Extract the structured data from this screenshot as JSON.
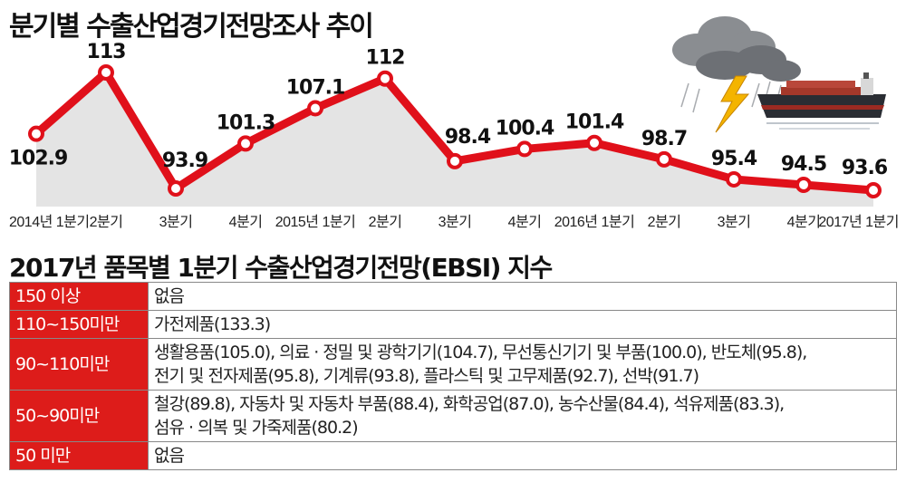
{
  "title": "분기별 수출산업경기전망조사 추이",
  "subtitle": "2017년 품목별 1분기 수출산업경기전망(EBSI) 지수",
  "colors": {
    "line": "#e0101a",
    "area": "#e4e4e4",
    "range_bg": "#dd1c1a"
  },
  "chart_data": {
    "type": "line",
    "title": "분기별 수출산업경기전망조사 추이",
    "categories": [
      "2014년 1분기",
      "2분기",
      "3분기",
      "4분기",
      "2015년 1분기",
      "2분기",
      "3분기",
      "4분기",
      "2016년 1분기",
      "2분기",
      "3분기",
      "4분기",
      "2017년 1분기"
    ],
    "values": [
      102.9,
      113,
      93.9,
      101.3,
      107.1,
      112,
      98.4,
      100.4,
      101.4,
      98.7,
      95.4,
      94.5,
      93.6
    ],
    "labels": [
      "102.9",
      "113",
      "93.9",
      "101.3",
      "107.1",
      "112",
      "98.4",
      "100.4",
      "101.4",
      "98.7",
      "95.4",
      "94.5",
      "93.6"
    ],
    "ylim": [
      85,
      118
    ],
    "grid": false,
    "legend": "none"
  },
  "table": {
    "rows": [
      {
        "range": "150 이상",
        "lines": [
          "없음"
        ]
      },
      {
        "range": "110~150미만",
        "lines": [
          "가전제품(133.3)"
        ]
      },
      {
        "range": "90~110미만",
        "lines": [
          "생활용품(105.0), 의료 · 정밀 및 광학기기(104.7), 무선통신기기 및 부품(100.0), 반도체(95.8),",
          "전기 및 전자제품(95.8), 기계류(93.8), 플라스틱 및 고무제품(92.7), 선박(91.7)"
        ]
      },
      {
        "range": "50~90미만",
        "lines": [
          "철강(89.8), 자동차 및 자동차 부품(88.4), 화학공업(87.0), 농수산물(84.4), 석유제품(83.3),",
          "섬유 · 의복 및 가죽제품(80.2)"
        ]
      },
      {
        "range": "50 미만",
        "lines": [
          "없음"
        ]
      }
    ]
  }
}
